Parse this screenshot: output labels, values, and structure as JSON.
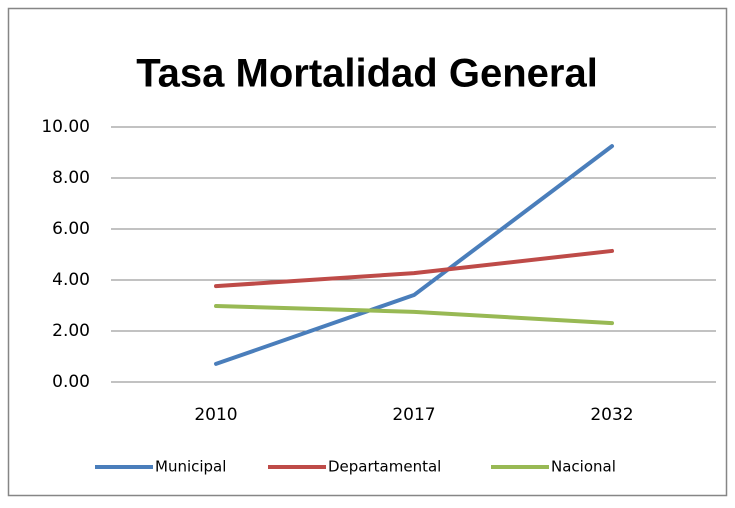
{
  "chart_data": {
    "type": "line",
    "title": "Tasa Mortalidad General",
    "categories": [
      "2010",
      "2017",
      "2032"
    ],
    "series": [
      {
        "name": "Municipal",
        "color": "#4a7ebb",
        "values": [
          0.71,
          3.41,
          9.25
        ]
      },
      {
        "name": "Departamental",
        "color": "#be4b48",
        "values": [
          3.76,
          4.27,
          5.14
        ]
      },
      {
        "name": "Nacional",
        "color": "#98b954",
        "values": [
          2.98,
          2.75,
          2.31
        ]
      }
    ],
    "ylim": [
      0,
      10
    ],
    "yticks": [
      {
        "value": 0,
        "label": "0.00"
      },
      {
        "value": 2,
        "label": "2.00"
      },
      {
        "value": 4,
        "label": "4.00"
      },
      {
        "value": 6,
        "label": "6.00"
      },
      {
        "value": 8,
        "label": "8.00"
      },
      {
        "value": 10,
        "label": "10.00"
      }
    ],
    "grid": true,
    "legend": "bottom"
  }
}
